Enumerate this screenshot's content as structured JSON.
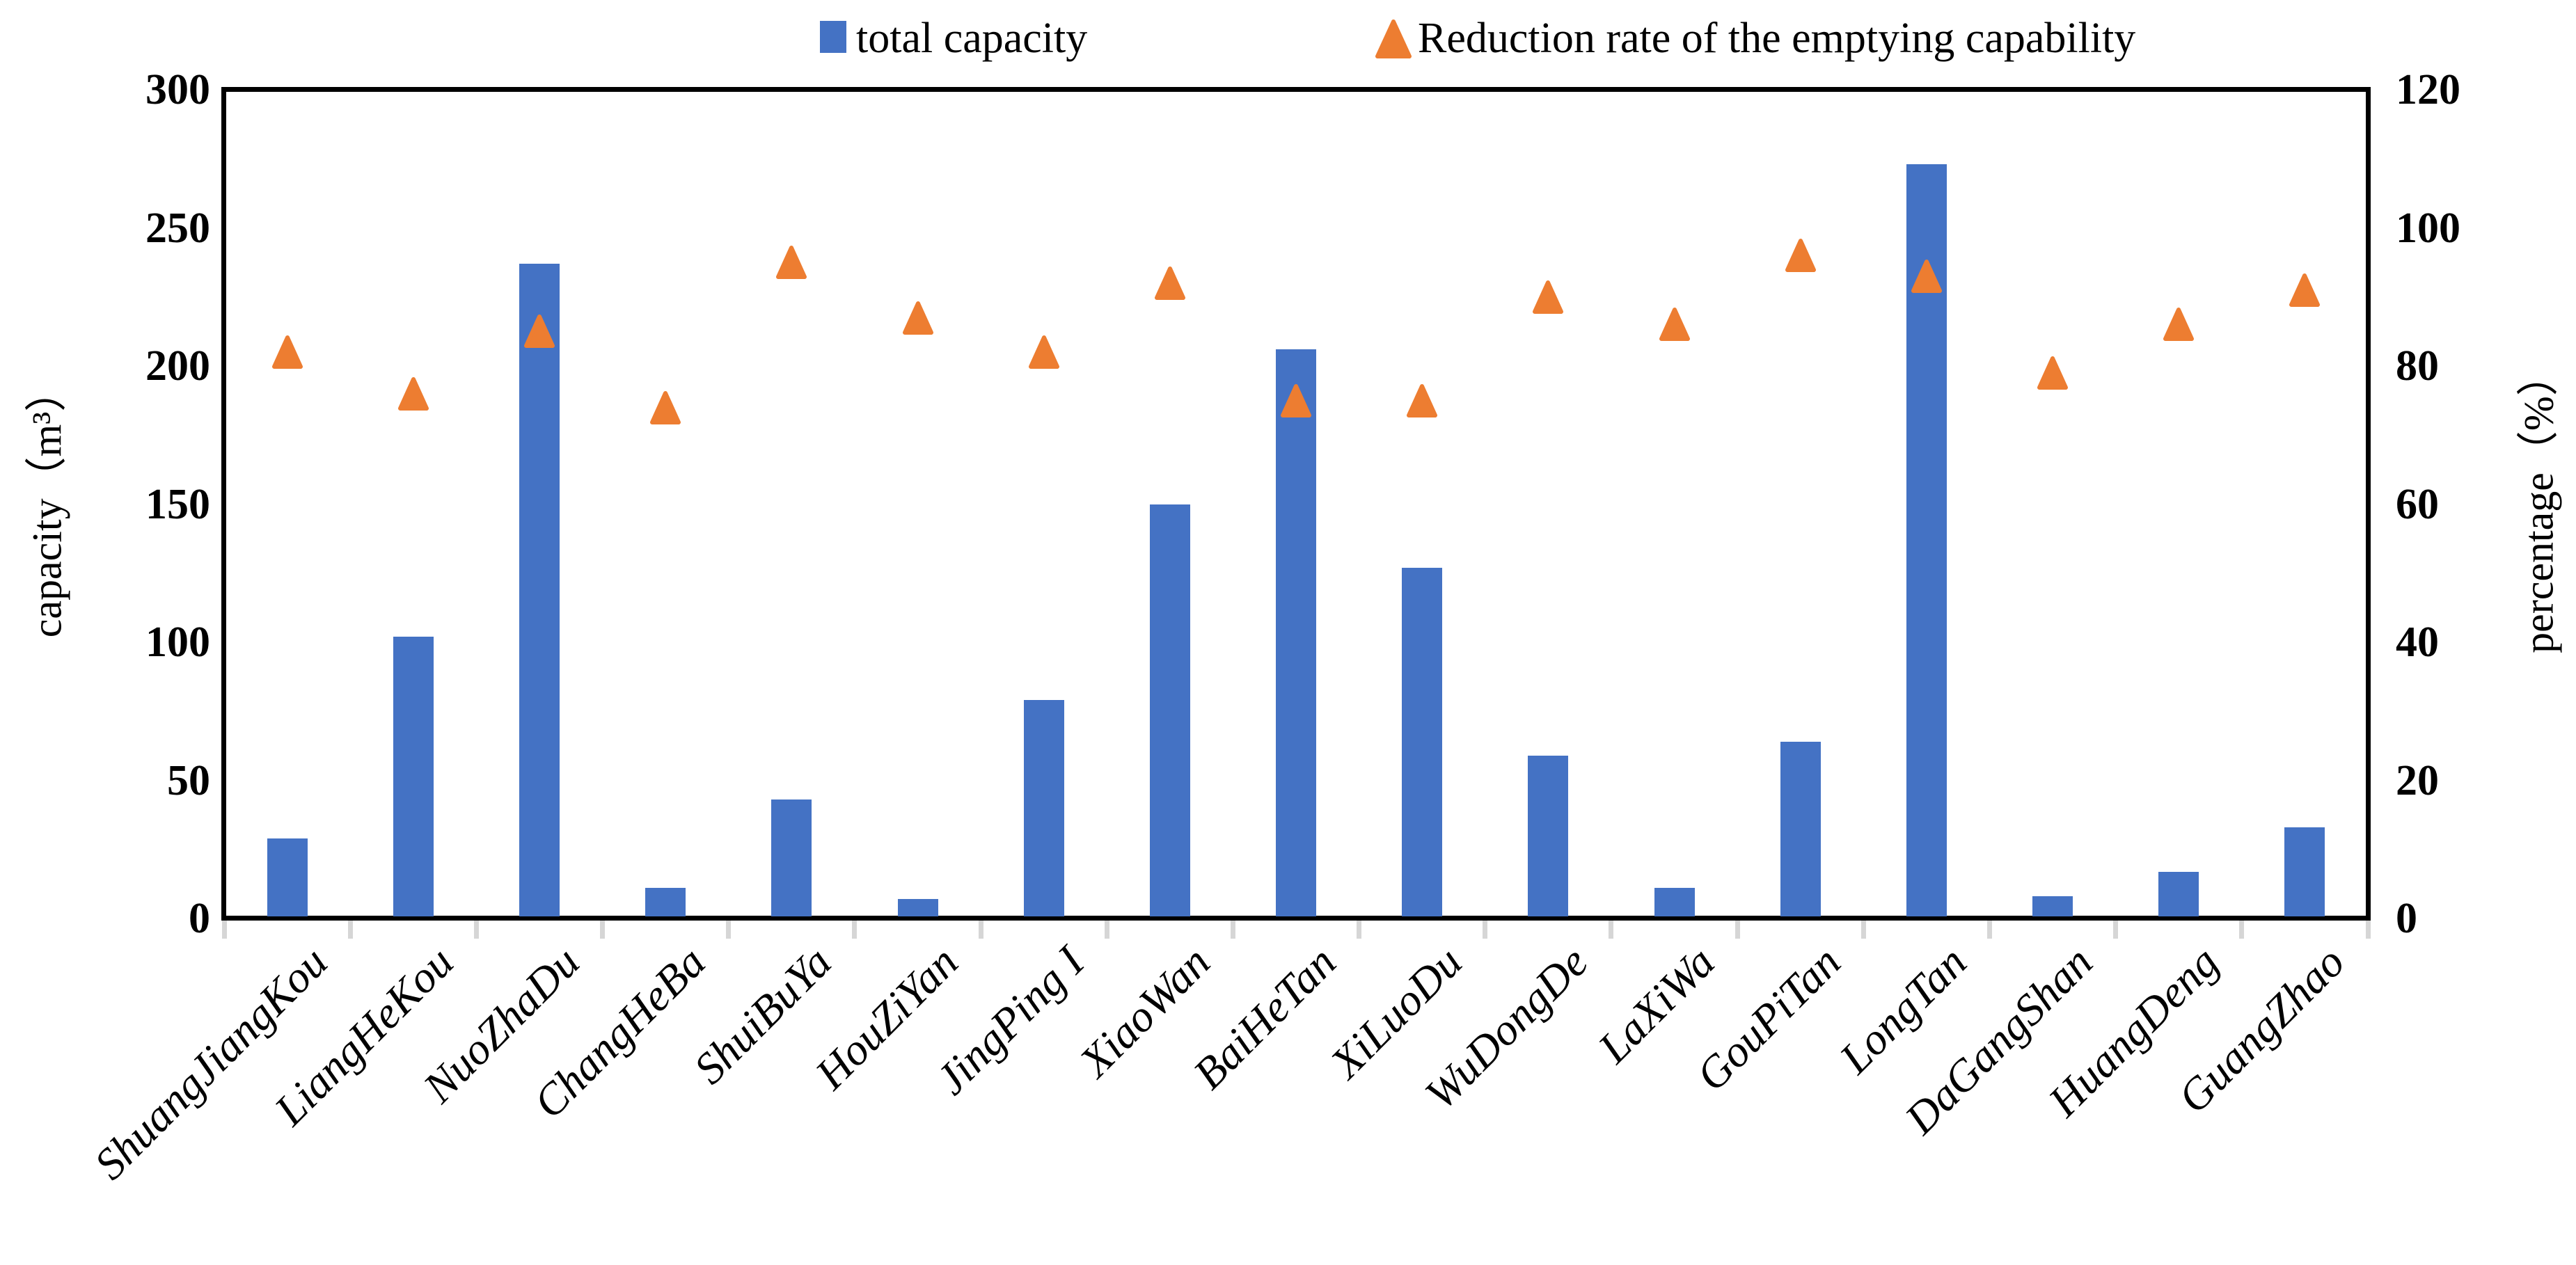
{
  "legend": {
    "bar_label": "total capacity",
    "marker_label": "Reduction rate of the emptying capability"
  },
  "colors": {
    "bar": "#4472C4",
    "marker": "#ED7D31",
    "axis": "#000000",
    "tick": "#d6d6d6"
  },
  "chart_data": {
    "type": "bar",
    "title": "",
    "xlabel": "",
    "ylabel_left": "capacity（m³）",
    "ylabel_right": "percentage（%）",
    "legend_position": "top",
    "grid": false,
    "categories": [
      "ShuangJiangKou",
      "LiangHeKou",
      "NuoZhaDu",
      "ChangHeBa",
      "ShuiBuYa",
      "HouZiYan",
      "JingPing I",
      "XiaoWan",
      "BaiHeTan",
      "XiLuoDu",
      "WuDongDe",
      "LaXiWa",
      "GouPiTan",
      "LongTan",
      "DaGangShan",
      "HuangDeng",
      "GuangZhao"
    ],
    "series": [
      {
        "name": "total capacity",
        "type": "bar",
        "axis": "left",
        "color": "#4472C4",
        "values": [
          29,
          102,
          237,
          11,
          43,
          7,
          79,
          150,
          206,
          127,
          59,
          11,
          64,
          273,
          8,
          17,
          33
        ]
      },
      {
        "name": "Reduction rate of the emptying capability",
        "type": "scatter-triangle",
        "axis": "right",
        "color": "#ED7D31",
        "values": [
          82,
          76,
          85,
          74,
          95,
          87,
          82,
          92,
          75,
          75,
          90,
          86,
          96,
          93,
          79,
          86,
          91
        ]
      }
    ],
    "left_axis": {
      "label": "capacity（m³）",
      "min": 0,
      "max": 300,
      "ticks": [
        0,
        50,
        100,
        150,
        200,
        250,
        300
      ]
    },
    "right_axis": {
      "label": "percentage（%）",
      "min": 0,
      "max": 120,
      "ticks": [
        0,
        20,
        40,
        60,
        80,
        100,
        120
      ]
    }
  }
}
